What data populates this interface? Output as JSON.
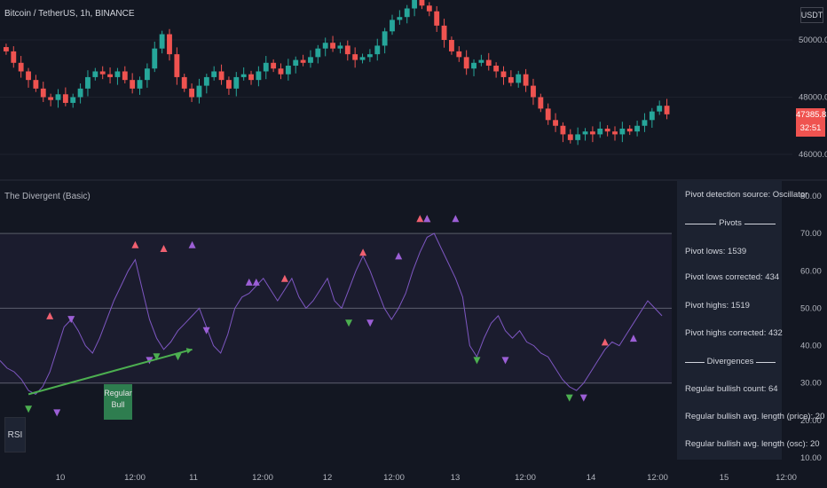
{
  "header": {
    "title": "Bitcoin / TetherUS, 1h, BINANCE",
    "currency": "USDT",
    "last_price": "47385.82",
    "countdown": "32:51"
  },
  "indicator": {
    "title": "The Divergent (Basic)",
    "pane_tag": "RSI",
    "divergence_label_line1": "Regular",
    "divergence_label_line2": "Bull"
  },
  "stats": {
    "source": "Pivot detection source: Oscillator",
    "pivots_header": "Pivots",
    "pivot_lows": "Pivot lows: 1539",
    "pivot_lows_corrected": "Pivot lows corrected: 434",
    "pivot_highs": "Pivot highs: 1519",
    "pivot_highs_corrected": "Pivot highs corrected: 432",
    "divergences_header": "Divergences",
    "bull_count": "Regular bullish count: 64",
    "bull_len_price": "Regular bullish avg. length (price): 20",
    "bull_len_osc": "Regular bullish avg. length (osc): 20"
  },
  "colors": {
    "background": "#131722",
    "up_candle": "#26a69a",
    "down_candle": "#ef5350",
    "rsi_line": "#7e57c2",
    "pivot_high": "#f06070",
    "pivot_high_corrected": "#9c5fd6",
    "pivot_low": "#4caf50",
    "divergence_line": "#4caf50"
  },
  "chart_data": [
    {
      "type": "candlestick",
      "title": "Bitcoin / TetherUS, 1h, BINANCE",
      "y_ticks": [
        "50000.00",
        "48000.00",
        "46000.00"
      ],
      "y_ticks_values": [
        50000,
        48000,
        46000
      ],
      "close_path": [
        49600,
        49200,
        48900,
        48600,
        48300,
        48000,
        47900,
        48100,
        47800,
        48000,
        48300,
        48700,
        48900,
        48800,
        48700,
        48900,
        48600,
        48300,
        48600,
        49000,
        49700,
        50200,
        49500,
        48700,
        48300,
        48000,
        48400,
        48700,
        48900,
        48600,
        48300,
        48700,
        48800,
        48600,
        48900,
        49200,
        49000,
        48800,
        49100,
        49300,
        49200,
        49400,
        49700,
        49900,
        49700,
        49800,
        49500,
        49300,
        49400,
        49500,
        49800,
        50300,
        50700,
        50800,
        51100,
        51400,
        51200,
        51000,
        50500,
        50000,
        49600,
        49400,
        49000,
        49200,
        49300,
        49100,
        48900,
        48700,
        48500,
        48800,
        48400,
        48000,
        47600,
        47200,
        47000,
        46700,
        46500,
        46700,
        46800,
        46700,
        46900,
        46800,
        46700,
        46900,
        46800,
        47000,
        47200,
        47500,
        47700,
        47400
      ],
      "last": 47385.82
    },
    {
      "type": "line",
      "title": "The Divergent (Basic)",
      "y_ticks": [
        "80.00",
        "70.00",
        "60.00",
        "50.00",
        "40.00",
        "30.00",
        "20.00",
        "10.00"
      ],
      "y_ticks_values": [
        80,
        70,
        60,
        50,
        40,
        30,
        20,
        10
      ],
      "bands": [
        70,
        50,
        30
      ],
      "x_ticks": [
        "10",
        "12:00",
        "11",
        "12:00",
        "12",
        "12:00",
        "13",
        "12:00",
        "14",
        "12:00",
        "15",
        "12:00"
      ],
      "rsi": [
        36,
        34,
        33,
        31,
        28,
        27,
        29,
        33,
        39,
        45,
        47,
        44,
        40,
        38,
        42,
        47,
        52,
        56,
        60,
        63,
        55,
        47,
        42,
        39,
        41,
        44,
        46,
        48,
        50,
        45,
        40,
        38,
        43,
        50,
        53,
        54,
        56,
        58,
        55,
        52,
        55,
        58,
        53,
        50,
        52,
        55,
        58,
        52,
        50,
        55,
        60,
        64,
        60,
        55,
        50,
        47,
        50,
        54,
        60,
        65,
        69,
        70,
        66,
        62,
        58,
        53,
        40,
        37,
        42,
        46,
        48,
        44,
        42,
        44,
        41,
        40,
        38,
        37,
        34,
        31,
        29,
        28,
        30,
        33,
        36,
        39,
        41,
        40,
        43,
        46,
        49,
        52,
        50,
        48
      ],
      "pivot_highs": [
        [
          7,
          48
        ],
        [
          19,
          67
        ],
        [
          23,
          66
        ],
        [
          40,
          58
        ],
        [
          51,
          65
        ],
        [
          59,
          74
        ],
        [
          60,
          74
        ],
        [
          85,
          41
        ]
      ],
      "pivot_highs_corrected": [
        [
          27,
          67
        ],
        [
          35,
          57
        ],
        [
          36,
          57
        ],
        [
          56,
          64
        ],
        [
          60,
          74
        ],
        [
          64,
          74
        ],
        [
          89,
          42
        ]
      ],
      "pivot_lows": [
        [
          4,
          23
        ],
        [
          22,
          37
        ],
        [
          25,
          37
        ],
        [
          49,
          46
        ],
        [
          67,
          36
        ],
        [
          80,
          26
        ]
      ],
      "pivot_lows_corrected": [
        [
          8,
          22
        ],
        [
          10,
          47
        ],
        [
          21,
          36
        ],
        [
          29,
          44
        ],
        [
          52,
          46
        ],
        [
          71,
          36
        ],
        [
          82,
          26
        ]
      ],
      "divergence": {
        "from": [
          4,
          27
        ],
        "to": [
          27,
          39
        ],
        "label": "Regular Bull"
      }
    }
  ]
}
